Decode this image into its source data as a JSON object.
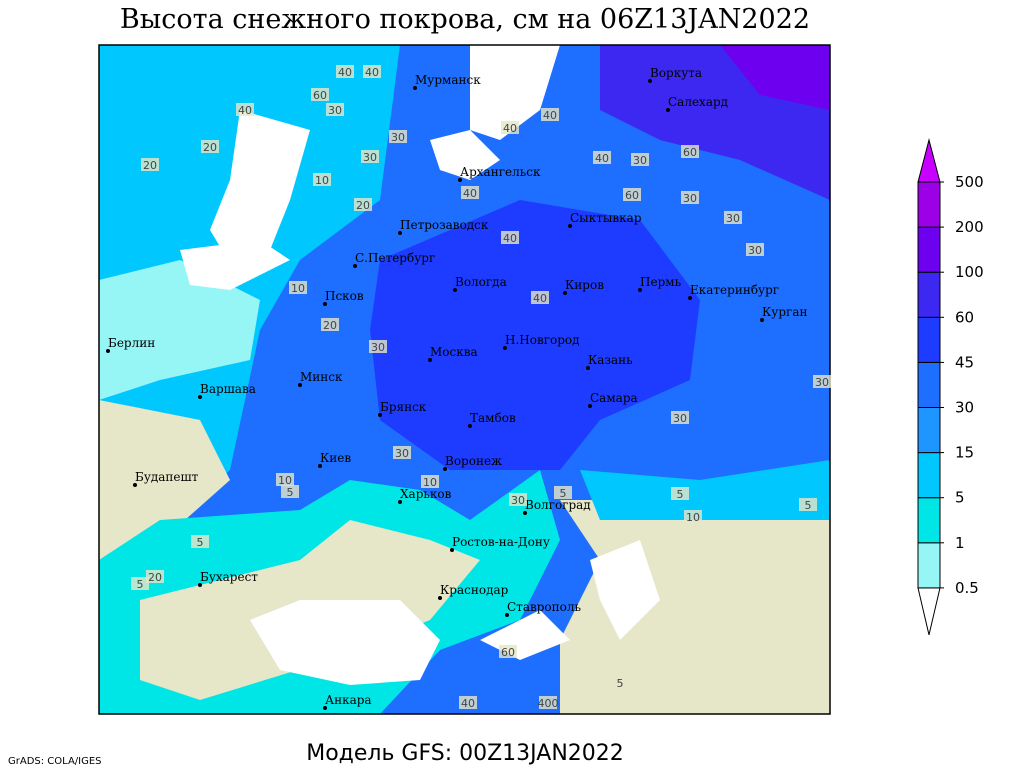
{
  "title": "Высота снежного покрова, см на 06Z13JAN2022",
  "footer": "Модель GFS: 00Z13JAN2022",
  "credit": "GrADS: COLA/IGES",
  "legend": {
    "levels": [
      0.5,
      1,
      5,
      15,
      30,
      45,
      60,
      100,
      200,
      500
    ],
    "colors": [
      "#ffffff",
      "#96f5f5",
      "#00e6e6",
      "#00c8ff",
      "#1e96ff",
      "#1e6eff",
      "#1e3cff",
      "#3c28f0",
      "#6e00f0",
      "#9b00e6",
      "#c800ff"
    ]
  },
  "cities": [
    "Мурманск",
    "Воркута",
    "Салехард",
    "Архангельск",
    "Петрозаводск",
    "Сыктывкар",
    "С.Петербург",
    "Псков",
    "Вологда",
    "Киров",
    "Пермь",
    "Екатеринбург",
    "Курган",
    "Берлин",
    "Москва",
    "Н.Новгород",
    "Казань",
    "Минск",
    "Варшава",
    "Брянск",
    "Тамбов",
    "Самара",
    "Киев",
    "Воронеж",
    "Будапешт",
    "Харьков",
    "Волгоград",
    "Ростов-на-Дону",
    "Бухарест",
    "Краснодар",
    "Ставрополь",
    "Анкара"
  ],
  "contour_labels": [
    "40",
    "40",
    "60",
    "30",
    "40",
    "20",
    "20",
    "10",
    "20",
    "30",
    "40",
    "40",
    "30",
    "60",
    "40",
    "30",
    "60",
    "40",
    "30",
    "10",
    "20",
    "30",
    "40",
    "40",
    "30",
    "30",
    "30",
    "30",
    "10",
    "5",
    "30",
    "10",
    "5",
    "5",
    "20",
    "5",
    "60",
    "40",
    "400",
    "5",
    "5",
    "10",
    "5",
    "30"
  ]
}
